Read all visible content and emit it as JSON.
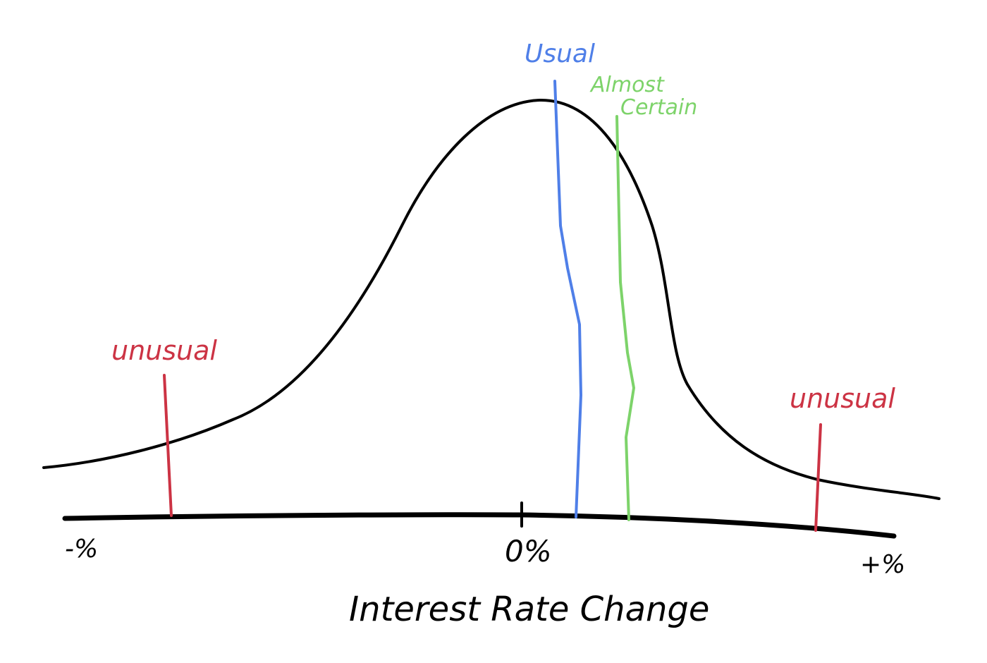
{
  "diagram": {
    "x_axis": {
      "label": "Interest Rate Change",
      "tick_left": "-%",
      "tick_center": "0%",
      "tick_right": "+%"
    },
    "curve": {
      "shape": "bell curve (normal distribution)",
      "color": "#000000"
    },
    "markers": [
      {
        "label": "unusual",
        "color": "#cc3344",
        "side": "left tail"
      },
      {
        "label": "Usual",
        "color": "#4f7fe8",
        "side": "just right of center"
      },
      {
        "label": "Almost Certain",
        "line1": "Almost",
        "line2": "Certain",
        "color": "#7dd36a",
        "side": "right of Usual"
      },
      {
        "label": "unusual",
        "color": "#cc3344",
        "side": "right tail"
      }
    ]
  }
}
